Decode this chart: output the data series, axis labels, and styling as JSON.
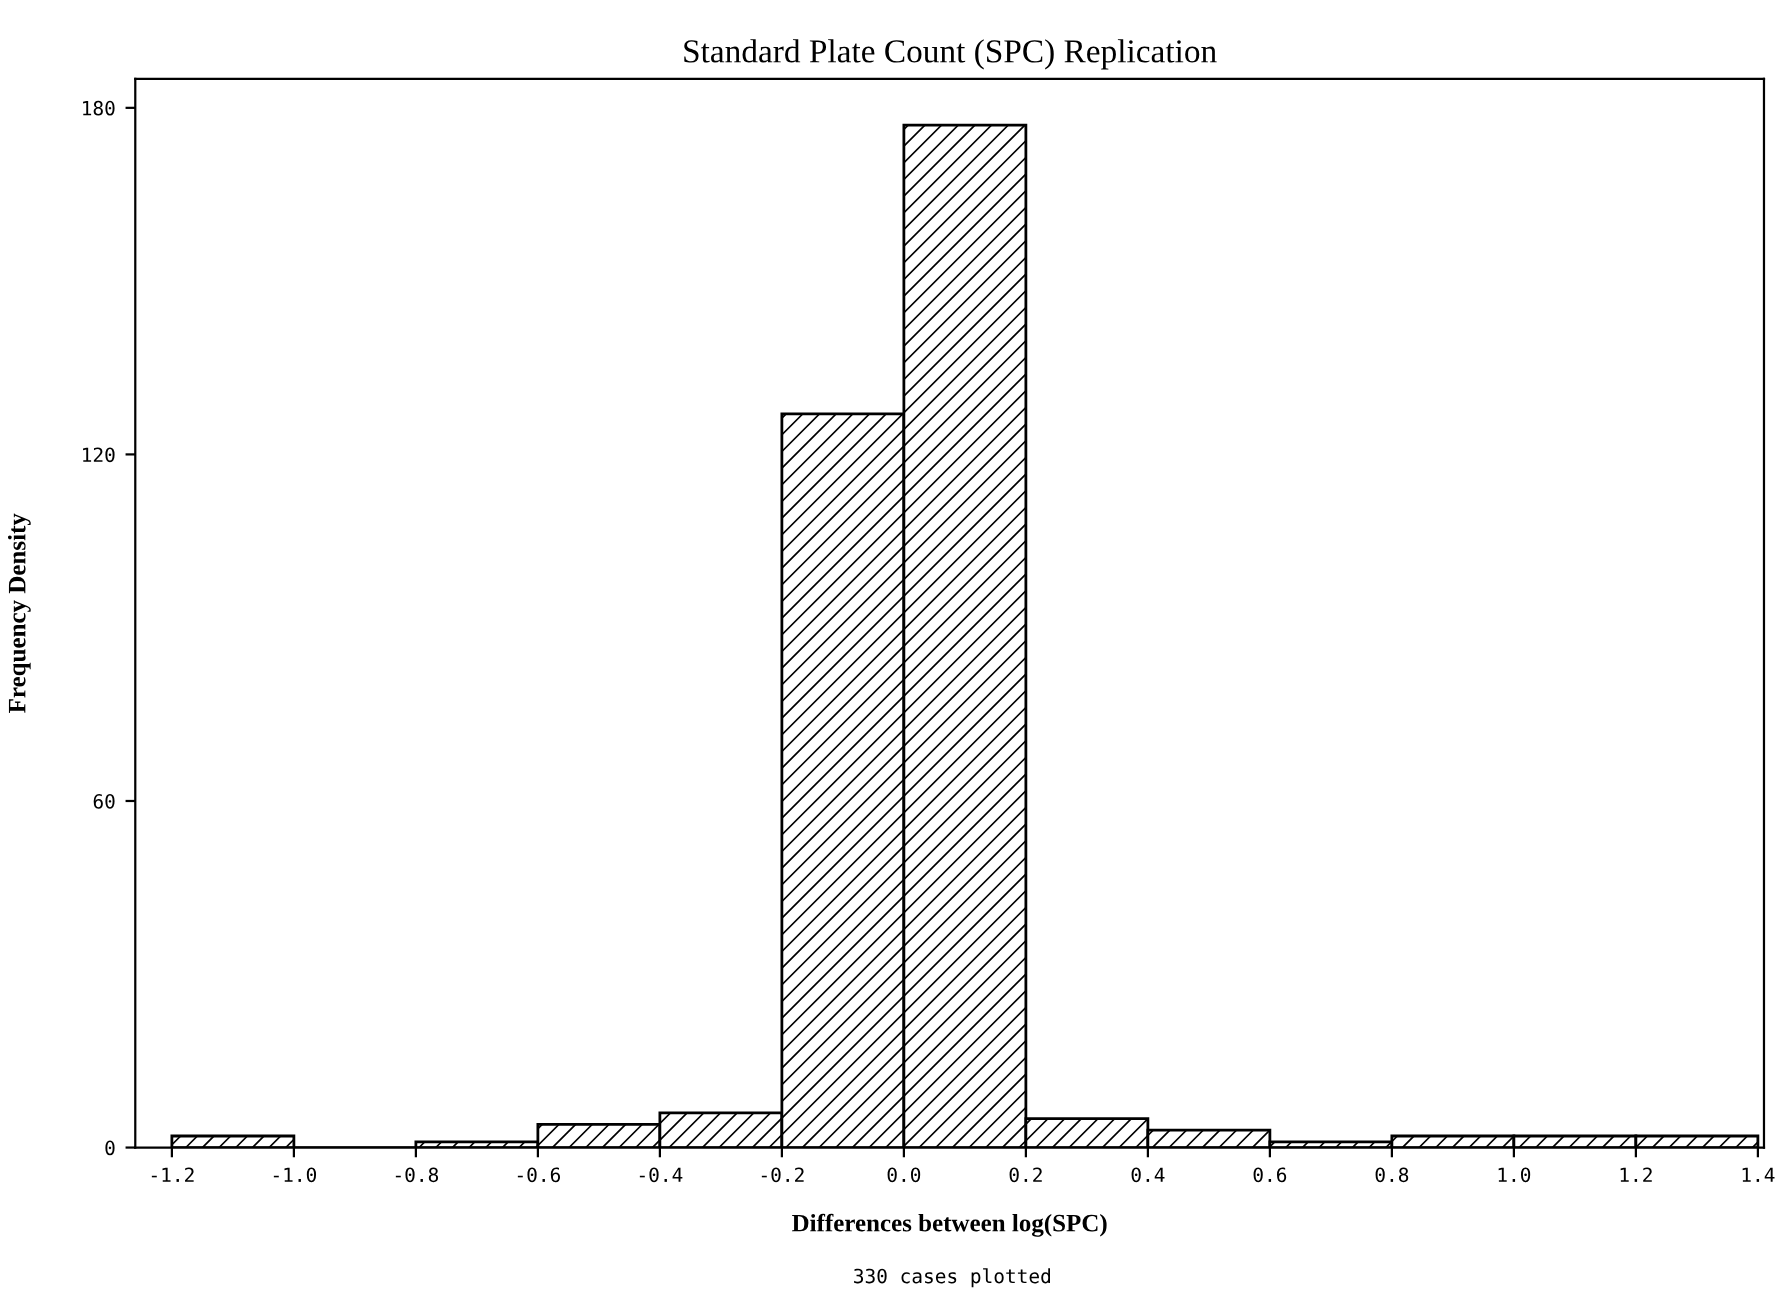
{
  "chart_data": {
    "type": "histogram",
    "title": "Standard Plate Count (SPC) Replication",
    "xlabel": "Differences between log(SPC)",
    "ylabel": "Frequency Density",
    "annotations": [
      "330 cases plotted"
    ],
    "bins": [
      -1.2,
      -1.0,
      -0.8,
      -0.6,
      -0.4,
      -0.2,
      0.0,
      0.2,
      0.4,
      0.6,
      0.8,
      1.0,
      1.2,
      1.4
    ],
    "values": [
      2,
      0,
      1,
      4,
      6,
      127,
      177,
      5,
      3,
      1,
      2,
      2,
      2
    ],
    "color": "#000000",
    "xlim": [
      -1.26,
      1.41
    ],
    "ylim": [
      0,
      185
    ],
    "xticks": [
      -1.2,
      {
        "value": -1,
        "label": "-1.0"
      },
      -0.8,
      -0.6,
      -0.4,
      -0.2,
      {
        "value": 0,
        "label": "0.0"
      },
      0.2,
      0.4,
      0.6,
      0.8,
      {
        "value": 1,
        "label": "1.0"
      },
      1.2,
      1.4
    ],
    "yticks": [
      0,
      60,
      120,
      180
    ],
    "grid": false
  }
}
